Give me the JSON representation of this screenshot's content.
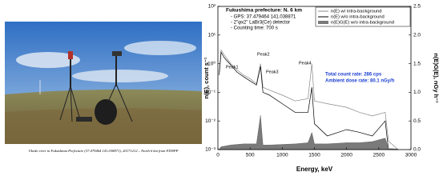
{
  "photo": {
    "caption": "Ukedo river in Fukushima Prefecture (37.479464 141.038871), 20171212 – North 6 km from FDNPP"
  },
  "chart_data": {
    "type": "line",
    "title": "Fukushima prefecture: N. 6 km",
    "annotations": [
      "- GPS: 37.479464 141.038871",
      "- 2\"φx2\" LaBr3(Ce) detector",
      "- Counting time: 700 s"
    ],
    "peaks": [
      "Peak1",
      "Peak2",
      "Peak3",
      "Peak4"
    ],
    "rates": [
      "Total count rate: 286 cps",
      "Ambient dose rate: 80.1 nGy/h"
    ],
    "xlabel": "Energy, keV",
    "ylabel": "n(E), count s⁻¹",
    "y2label": "n(E)G(E), nGy h⁻¹",
    "yscale": "log",
    "legend": "upper right",
    "x": [
      20,
      50,
      100,
      200,
      300,
      400,
      500,
      600,
      662,
      700,
      800,
      1000,
      1200,
      1400,
      1460,
      1500,
      1700,
      2000,
      2200,
      2400,
      2600,
      2650,
      2800
    ],
    "series": [
      {
        "name": "n(E) w/ intra-background",
        "color": "#888888",
        "values": [
          0.5,
          3,
          2,
          1,
          0.6,
          0.4,
          0.3,
          0.2,
          1.0,
          0.15,
          0.12,
          0.08,
          0.05,
          0.06,
          1.0,
          0.05,
          0.04,
          0.03,
          0.02,
          0.015,
          0.02,
          0.002,
          0.001
        ]
      },
      {
        "name": "n(E) w/o intra-background",
        "color": "#000000",
        "values": [
          0.4,
          2.5,
          1.6,
          0.9,
          0.5,
          0.35,
          0.25,
          0.18,
          0.8,
          0.1,
          0.08,
          0.04,
          0.02,
          0.02,
          0.15,
          0.008,
          0.003,
          0.005,
          0.004,
          0.003,
          0.01,
          0.001,
          0.001
        ]
      },
      {
        "name": "n(E)G(E) w/o intra-background",
        "color": "#7a7a7a",
        "axis": "y2",
        "values": [
          0.01,
          0.05,
          0.06,
          0.08,
          0.09,
          0.1,
          0.1,
          0.1,
          0.6,
          0.08,
          0.08,
          0.09,
          0.1,
          0.12,
          0.3,
          0.1,
          0.1,
          0.12,
          0.12,
          0.14,
          0.2,
          0.02,
          0.01
        ]
      }
    ],
    "xlim": [
      0,
      3000
    ],
    "xticks": [
      0,
      500,
      1000,
      1500,
      2000,
      2500,
      3000
    ],
    "ylim": [
      0.001,
      100
    ],
    "yticks": [
      {
        "value": 100,
        "label": "10²"
      },
      {
        "value": 10,
        "label": "10¹"
      },
      {
        "value": 1,
        "label": "10⁰"
      },
      {
        "value": 0.1,
        "label": "10⁻¹"
      },
      {
        "value": 0.01,
        "label": "10⁻²"
      },
      {
        "value": 0.001,
        "label": "10⁻³"
      }
    ],
    "y2lim": [
      0,
      2.5
    ],
    "y2ticks": [
      {
        "value": 0,
        "label": "0.0"
      },
      0.5,
      {
        "value": 1,
        "label": "1.0"
      },
      1.5,
      {
        "value": 2,
        "label": "2.0"
      },
      2.5
    ]
  }
}
